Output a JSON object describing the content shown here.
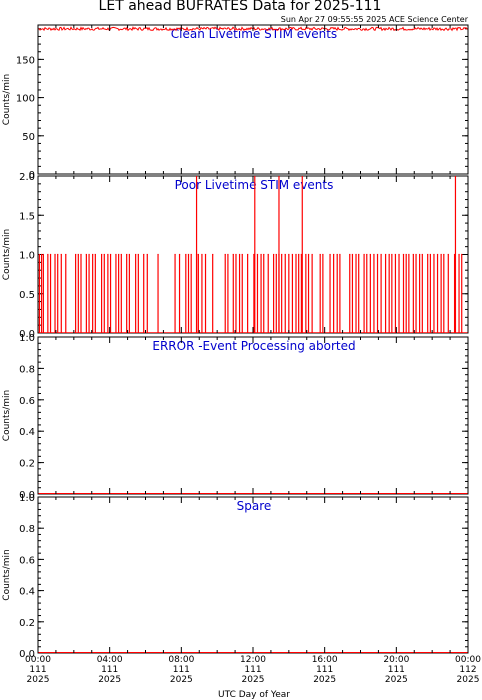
{
  "title": "LET ahead BUFRATES Data for 2025-111",
  "timestamp": "Sun Apr 27 09:55:55 2025 ACE Science Center",
  "x_label": "UTC Day of Year",
  "x_ticks": [
    {
      "t": 0,
      "l1": "00:00",
      "l2": "111",
      "l3": "2025"
    },
    {
      "t": 4,
      "l1": "04:00",
      "l2": "111",
      "l3": "2025"
    },
    {
      "t": 8,
      "l1": "08:00",
      "l2": "111",
      "l3": "2025"
    },
    {
      "t": 12,
      "l1": "12:00",
      "l2": "111",
      "l3": "2025"
    },
    {
      "t": 16,
      "l1": "16:00",
      "l2": "111",
      "l3": "2025"
    },
    {
      "t": 20,
      "l1": "20:00",
      "l2": "111",
      "l3": "2025"
    },
    {
      "t": 24,
      "l1": "00:00",
      "l2": "112",
      "l3": "2025"
    }
  ],
  "colors": {
    "data": "#ff0000",
    "panel_label": "#0000cc",
    "axes": "#000000",
    "background": "#ffffff"
  },
  "chart_data": [
    {
      "type": "line",
      "title": "Clean Livetime STIM events",
      "ylabel": "Counts/min",
      "xlabel": "UTC Day of Year",
      "xlim": [
        0,
        24
      ],
      "ylim": [
        0,
        195
      ],
      "yticks": [
        0,
        50,
        100,
        150
      ],
      "ytick_labels": [
        "0",
        "50",
        "100",
        "150"
      ],
      "description_of_series": "constant near 190 across the whole day",
      "series": [
        {
          "x": [
            0,
            24
          ],
          "y": [
            190,
            190
          ]
        }
      ],
      "noise": {
        "center": 190,
        "amplitude": 2
      }
    },
    {
      "type": "line",
      "title": "Poor Livetime STIM events",
      "ylabel": "Counts/min",
      "xlabel": "UTC Day of Year",
      "xlim": [
        0,
        24
      ],
      "ylim": [
        0,
        2
      ],
      "yticks": [
        0.0,
        0.5,
        1.0,
        1.5,
        2.0
      ],
      "ytick_labels": [
        "0.0",
        "0.5",
        "1.0",
        "1.5",
        "2.0"
      ],
      "spikes_to_1": [
        0.08,
        0.2,
        0.3,
        0.55,
        0.7,
        0.95,
        1.1,
        1.3,
        1.55,
        2.1,
        2.25,
        2.4,
        2.7,
        2.85,
        3.05,
        3.2,
        3.55,
        3.7,
        3.9,
        4.05,
        4.35,
        4.5,
        4.65,
        4.95,
        5.1,
        5.45,
        5.6,
        5.9,
        6.1,
        6.7,
        7.65,
        7.9,
        8.25,
        8.4,
        8.55,
        8.85,
        8.95,
        9.15,
        9.35,
        9.75,
        10.45,
        10.6,
        10.9,
        11.05,
        11.25,
        11.4,
        11.7,
        12.05,
        12.25,
        12.45,
        12.6,
        12.85,
        13.15,
        13.3,
        13.45,
        13.6,
        13.8,
        14.0,
        14.2,
        14.4,
        14.55,
        14.7,
        14.95,
        15.1,
        15.3,
        15.75,
        15.9,
        16.3,
        16.5,
        16.7,
        16.85,
        17.4,
        17.55,
        17.75,
        17.9,
        18.2,
        18.35,
        18.55,
        18.75,
        18.95,
        19.15,
        19.4,
        19.6,
        19.75,
        19.95,
        20.15,
        20.4,
        20.55,
        20.7,
        20.95,
        21.1,
        21.3,
        21.45,
        21.75,
        21.9,
        22.1,
        22.3,
        22.5,
        22.65,
        22.9,
        23.25,
        23.5,
        23.65
      ],
      "spikes_to_2": [
        8.85,
        12.1,
        13.45,
        14.75,
        23.3
      ]
    },
    {
      "type": "line",
      "title": "ERROR -Event Processing aborted",
      "ylabel": "Counts/min",
      "xlabel": "UTC Day of Year",
      "xlim": [
        0,
        24
      ],
      "ylim": [
        0,
        1
      ],
      "yticks": [
        0.0,
        0.2,
        0.4,
        0.6,
        0.8,
        1.0
      ],
      "ytick_labels": [
        "0.0",
        "0.2",
        "0.4",
        "0.6",
        "0.8",
        "1.0"
      ],
      "series": [
        {
          "x": [
            0,
            24
          ],
          "y": [
            0,
            0
          ]
        }
      ]
    },
    {
      "type": "line",
      "title": "Spare",
      "ylabel": "Counts/min",
      "xlabel": "UTC Day of Year",
      "xlim": [
        0,
        24
      ],
      "ylim": [
        0,
        1
      ],
      "yticks": [
        0.0,
        0.2,
        0.4,
        0.6,
        0.8,
        1.0
      ],
      "ytick_labels": [
        "0.0",
        "0.2",
        "0.4",
        "0.6",
        "0.8",
        "1.0"
      ],
      "series": [
        {
          "x": [
            0,
            24
          ],
          "y": [
            0,
            0
          ]
        }
      ]
    }
  ]
}
